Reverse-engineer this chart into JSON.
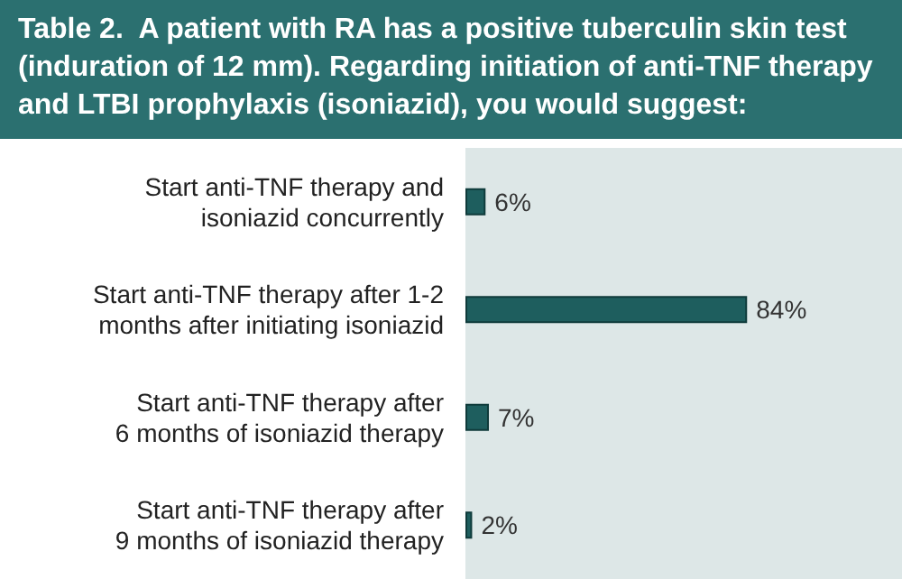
{
  "chart_data": {
    "type": "bar",
    "orientation": "horizontal",
    "title": "Table 2.  A patient with RA has a positive tuberculin skin test (induration of 12 mm). Regarding initiation of anti-TNF therapy and LTBI prophylaxis (isoniazid), you would suggest:",
    "categories": [
      "Start anti-TNF therapy and\nisoniazid concurrently",
      "Start anti-TNF therapy after 1-2\nmonths after initiating isoniazid",
      "Start anti-TNF therapy after\n6 months of isoniazid therapy",
      "Start anti-TNF therapy after\n9 months of isoniazid therapy"
    ],
    "values": [
      6,
      84,
      7,
      2
    ],
    "value_labels": [
      "6%",
      "84%",
      "7%",
      "2%"
    ],
    "color": "#1e5e5e"
  }
}
